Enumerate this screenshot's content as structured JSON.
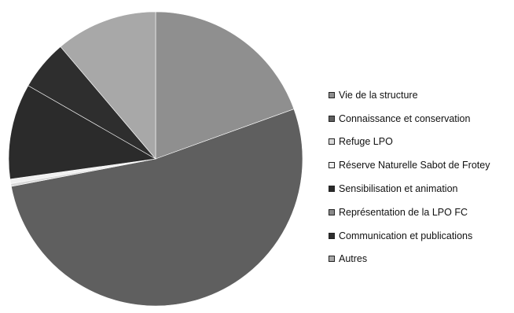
{
  "chart_data": {
    "type": "pie",
    "title": "",
    "start_angle_deg": 0,
    "direction": "clockwise",
    "categories": [
      "Vie de la structure",
      "Connaissance et conservation",
      "Refuge LPO",
      "Réserve Naturelle Sabot de Frotey",
      "Sensibilisation et animation",
      "Représentation de la LPO FC",
      "Communication et publications",
      "Autres"
    ],
    "values": [
      19.5,
      52.5,
      0.3,
      0.5,
      10.5,
      0,
      5.5,
      11.2
    ],
    "colors": [
      "#8f8f8f",
      "#5f5f5f",
      "#d9d9d9",
      "#f0f0f0",
      "#2b2b2b",
      "#8a8a8a",
      "#2e2e2e",
      "#a8a8a8"
    ],
    "legend_position": "right"
  }
}
